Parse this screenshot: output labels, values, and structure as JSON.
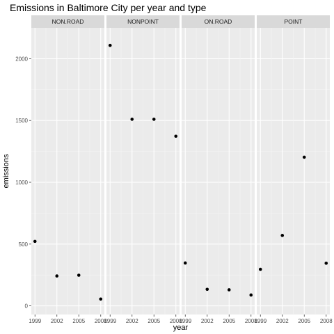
{
  "chart_data": {
    "type": "scatter",
    "title": "Emissions in Baltimore City per year and type",
    "xlabel": "year",
    "ylabel": "emissions",
    "x_ticks": [
      1999,
      2002,
      2005,
      2008
    ],
    "y_ticks": [
      0,
      500,
      1000,
      1500,
      2000
    ],
    "ylim": [
      -70,
      2250
    ],
    "xlim": [
      1998.5,
      2008.5
    ],
    "grid": true,
    "facets": [
      {
        "name": "NON.ROAD",
        "x": [
          1999,
          2002,
          2005,
          2008
        ],
        "y": [
          522,
          242,
          248,
          55
        ]
      },
      {
        "name": "NONPOINT",
        "x": [
          1999,
          2002,
          2005,
          2008
        ],
        "y": [
          2108,
          1510,
          1510,
          1373
        ]
      },
      {
        "name": "ON.ROAD",
        "x": [
          1999,
          2002,
          2005,
          2008
        ],
        "y": [
          347,
          134,
          130,
          88
        ]
      },
      {
        "name": "POINT",
        "x": [
          1999,
          2002,
          2005,
          2008
        ],
        "y": [
          296,
          570,
          1203,
          345
        ]
      }
    ],
    "colors": {
      "panel": "#ebebeb",
      "strip": "#d9d9d9",
      "grid_major": "#ffffff",
      "point": "#000000"
    }
  }
}
